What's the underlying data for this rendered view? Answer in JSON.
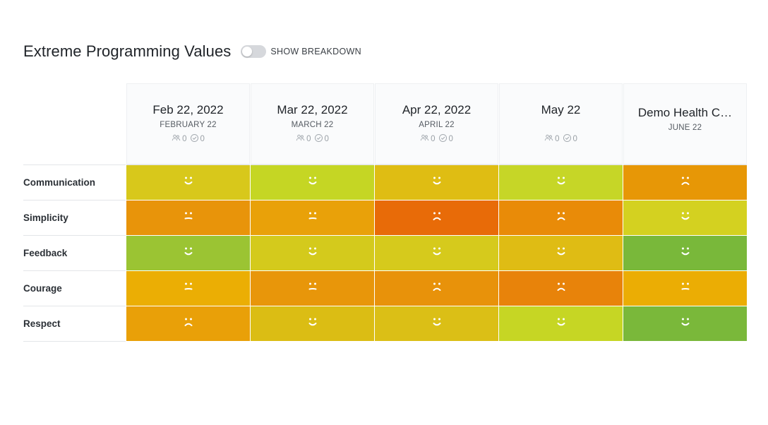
{
  "header": {
    "title": "Extreme Programming Values",
    "toggle_label": "SHOW BREAKDOWN",
    "toggle_on": false
  },
  "columns": [
    {
      "title": "Feb 22, 2022",
      "subtitle": "FEBRUARY 22",
      "participants": "0",
      "completed": "0",
      "show_stats": true
    },
    {
      "title": "Mar 22, 2022",
      "subtitle": "MARCH 22",
      "participants": "0",
      "completed": "0",
      "show_stats": true
    },
    {
      "title": "Apr 22, 2022",
      "subtitle": "APRIL 22",
      "participants": "0",
      "completed": "0",
      "show_stats": true
    },
    {
      "title": "May 22",
      "subtitle": "",
      "participants": "0",
      "completed": "0",
      "show_stats": true
    },
    {
      "title": "Demo Health C…",
      "subtitle": "JUNE 22",
      "participants": "",
      "completed": "",
      "show_stats": false
    }
  ],
  "rows": [
    {
      "label": "Communication",
      "cells": [
        {
          "color": "#d8c81b",
          "mood": "happy"
        },
        {
          "color": "#c5d624",
          "mood": "happy"
        },
        {
          "color": "#dfbd13",
          "mood": "happy"
        },
        {
          "color": "#c6d627",
          "mood": "happy"
        },
        {
          "color": "#e79706",
          "mood": "sad"
        }
      ]
    },
    {
      "label": "Simplicity",
      "cells": [
        {
          "color": "#e8940a",
          "mood": "neutral"
        },
        {
          "color": "#e9a109",
          "mood": "neutral"
        },
        {
          "color": "#e86b08",
          "mood": "sad"
        },
        {
          "color": "#e98b08",
          "mood": "sad"
        },
        {
          "color": "#d4d120",
          "mood": "happy"
        }
      ]
    },
    {
      "label": "Feedback",
      "cells": [
        {
          "color": "#9bc433",
          "mood": "happy"
        },
        {
          "color": "#d4ca1c",
          "mood": "happy"
        },
        {
          "color": "#d6ca1c",
          "mood": "happy"
        },
        {
          "color": "#dfbc14",
          "mood": "happy"
        },
        {
          "color": "#79b83a",
          "mood": "happy"
        }
      ]
    },
    {
      "label": "Courage",
      "cells": [
        {
          "color": "#ebae04",
          "mood": "neutral"
        },
        {
          "color": "#e8960a",
          "mood": "neutral"
        },
        {
          "color": "#e8920a",
          "mood": "sad"
        },
        {
          "color": "#e8830a",
          "mood": "sad"
        },
        {
          "color": "#ebad04",
          "mood": "neutral"
        }
      ]
    },
    {
      "label": "Respect",
      "cells": [
        {
          "color": "#e9a008",
          "mood": "sad"
        },
        {
          "color": "#dbbd14",
          "mood": "happy"
        },
        {
          "color": "#dbbf16",
          "mood": "happy"
        },
        {
          "color": "#c6d624",
          "mood": "happy"
        },
        {
          "color": "#7ab83a",
          "mood": "happy"
        }
      ]
    }
  ]
}
